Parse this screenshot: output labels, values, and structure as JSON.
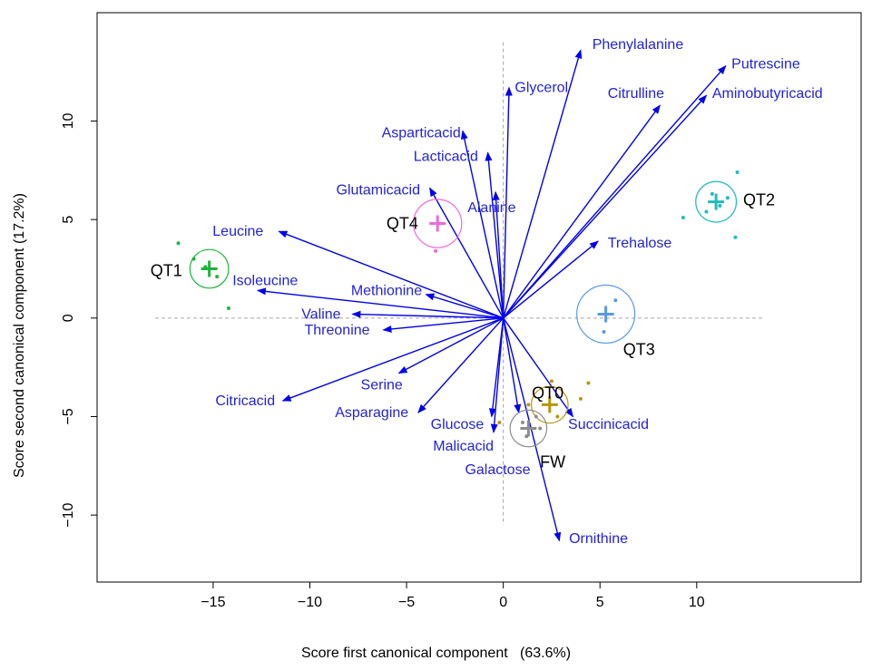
{
  "chart_data": {
    "type": "scatter",
    "title": "",
    "xlabel": "Score first canonical component   (63.6%)",
    "ylabel": "Score second canonical component  (17.2%)",
    "xlim": [
      -21,
      18.5
    ],
    "ylim": [
      -13.4,
      15.5
    ],
    "x_ticks": [
      -15,
      -10,
      -5,
      0,
      5,
      10
    ],
    "y_ticks": [
      -10,
      -5,
      0,
      5,
      10
    ],
    "reference_lines": {
      "vertical_x": 0,
      "horizontal_y": 0,
      "style": "dashed grey"
    },
    "grid": false,
    "legend": "none",
    "groups": [
      {
        "name": "QT1",
        "color": "#1db33a",
        "center": [
          -15.2,
          2.5
        ],
        "circle_radius": 1.0,
        "points": [
          [
            -16.8,
            3.8
          ],
          [
            -16.0,
            3.0
          ],
          [
            -14.8,
            2.1
          ],
          [
            -14.2,
            0.5
          ],
          [
            -15.4,
            2.6
          ]
        ]
      },
      {
        "name": "QT4",
        "color": "#f06ad8",
        "center": [
          -3.4,
          4.8
        ],
        "circle_radius": 1.25,
        "points": [
          [
            -3.5,
            3.4
          ],
          [
            -3.3,
            4.8
          ]
        ]
      },
      {
        "name": "QT2",
        "color": "#1fbcbc",
        "center": [
          11.0,
          5.9
        ],
        "circle_radius": 1.05,
        "points": [
          [
            12.1,
            7.4
          ],
          [
            11.6,
            6.1
          ],
          [
            10.5,
            5.4
          ],
          [
            9.3,
            5.1
          ],
          [
            10.8,
            6.3
          ],
          [
            12.0,
            4.1
          ],
          [
            11.2,
            5.7
          ]
        ]
      },
      {
        "name": "QT3",
        "color": "#5b99e6",
        "center": [
          5.3,
          0.2
        ],
        "circle_radius": 1.5,
        "points": [
          [
            5.8,
            0.9
          ],
          [
            5.2,
            -0.7
          ]
        ]
      },
      {
        "name": "QT0",
        "color": "#b8950f",
        "center": [
          2.4,
          -4.4
        ],
        "circle_radius": 0.95,
        "points": [
          [
            4.4,
            -3.3
          ],
          [
            4.0,
            -4.1
          ],
          [
            2.5,
            -3.2
          ],
          [
            1.3,
            -4.4
          ],
          [
            -0.2,
            -5.3
          ],
          [
            2.8,
            -5.0
          ]
        ]
      },
      {
        "name": "FW",
        "color": "#8c8c8c",
        "center": [
          1.3,
          -5.6
        ],
        "circle_radius": 0.95,
        "points": [
          [
            1.7,
            -5.0
          ],
          [
            1.0,
            -5.3
          ],
          [
            1.9,
            -5.6
          ],
          [
            1.2,
            -6.0
          ]
        ]
      }
    ],
    "vectors": [
      {
        "name": "Phenylalanine",
        "x": 4.0,
        "y": 13.6,
        "label_pos": [
          4.6,
          13.9
        ],
        "anchor": "start"
      },
      {
        "name": "Putrescine",
        "x": 11.5,
        "y": 12.8,
        "label_pos": [
          11.8,
          12.9
        ],
        "anchor": "start"
      },
      {
        "name": "Aminobutyricacid",
        "x": 10.5,
        "y": 11.3,
        "label_pos": [
          10.8,
          11.4
        ],
        "anchor": "start"
      },
      {
        "name": "Citrulline",
        "x": 8.1,
        "y": 10.8,
        "label_pos": [
          5.4,
          11.4
        ],
        "anchor": "start"
      },
      {
        "name": "Glycerol",
        "x": 0.3,
        "y": 11.7,
        "label_pos": [
          0.6,
          11.7
        ],
        "anchor": "start"
      },
      {
        "name": "Asparticacid",
        "x": -2.1,
        "y": 9.5,
        "label_pos": [
          -2.2,
          9.4
        ],
        "anchor": "end"
      },
      {
        "name": "Lacticacid",
        "x": -0.8,
        "y": 8.4,
        "label_pos": [
          -1.3,
          8.2
        ],
        "anchor": "end"
      },
      {
        "name": "Alanine",
        "x": -0.4,
        "y": 6.4,
        "label_pos": [
          -1.85,
          5.6
        ],
        "anchor": "start"
      },
      {
        "name": "Glutamicacid",
        "x": -3.8,
        "y": 6.6,
        "label_pos": [
          -4.3,
          6.5
        ],
        "anchor": "end"
      },
      {
        "name": "Trehalose",
        "x": 4.9,
        "y": 3.9,
        "label_pos": [
          5.4,
          3.8
        ],
        "anchor": "start"
      },
      {
        "name": "Leucine",
        "x": -11.6,
        "y": 4.4,
        "label_pos": [
          -12.4,
          4.4
        ],
        "anchor": "end"
      },
      {
        "name": "Isoleucine",
        "x": -12.7,
        "y": 1.4,
        "label_pos": [
          -14.0,
          1.9
        ],
        "anchor": "start"
      },
      {
        "name": "Methionine",
        "x": -4.0,
        "y": 1.2,
        "label_pos": [
          -4.2,
          1.4
        ],
        "anchor": "end"
      },
      {
        "name": "Valine",
        "x": -7.8,
        "y": 0.2,
        "label_pos": [
          -8.4,
          0.2
        ],
        "anchor": "end"
      },
      {
        "name": "Threonine",
        "x": -6.2,
        "y": -0.6,
        "label_pos": [
          -6.9,
          -0.6
        ],
        "anchor": "end"
      },
      {
        "name": "Serine",
        "x": -5.4,
        "y": -2.8,
        "label_pos": [
          -5.2,
          -3.4
        ],
        "anchor": "end"
      },
      {
        "name": "Citricacid",
        "x": -11.4,
        "y": -4.2,
        "label_pos": [
          -11.8,
          -4.2
        ],
        "anchor": "end"
      },
      {
        "name": "Asparagine",
        "x": -4.4,
        "y": -4.8,
        "label_pos": [
          -4.9,
          -4.8
        ],
        "anchor": "end"
      },
      {
        "name": "Glucose",
        "x": -0.6,
        "y": -5.0,
        "label_pos": [
          -1.0,
          -5.4
        ],
        "anchor": "end"
      },
      {
        "name": "Malicacid",
        "x": -0.5,
        "y": -5.8,
        "label_pos": [
          -0.5,
          -6.5
        ],
        "anchor": "end"
      },
      {
        "name": "Galactose",
        "x": 0.8,
        "y": -4.8,
        "label_pos": [
          1.4,
          -7.7
        ],
        "anchor": "end"
      },
      {
        "name": "Succinicacid",
        "x": 3.6,
        "y": -5.0,
        "label_pos": [
          3.35,
          -5.4
        ],
        "anchor": "start"
      },
      {
        "name": "Ornithine",
        "x": 2.9,
        "y": -11.3,
        "label_pos": [
          3.4,
          -11.2
        ],
        "anchor": "start"
      }
    ],
    "group_labels": [
      {
        "name": "QT1",
        "pos": [
          -16.6,
          2.4
        ],
        "anchor": "end"
      },
      {
        "name": "QT4",
        "pos": [
          -4.4,
          4.8
        ],
        "anchor": "end"
      },
      {
        "name": "QT2",
        "pos": [
          12.4,
          6.0
        ],
        "anchor": "start"
      },
      {
        "name": "QT3",
        "pos": [
          6.2,
          -1.6
        ],
        "anchor": "start"
      },
      {
        "name": "QT0",
        "pos": [
          2.3,
          -3.8
        ],
        "anchor": "middle"
      },
      {
        "name": "FW",
        "pos": [
          1.9,
          -7.3
        ],
        "anchor": "start"
      }
    ],
    "colors": {
      "vector": "#0000ee",
      "vector_label": "#2323dd",
      "axis": "#000000",
      "refline": "#a6a6a6"
    }
  }
}
